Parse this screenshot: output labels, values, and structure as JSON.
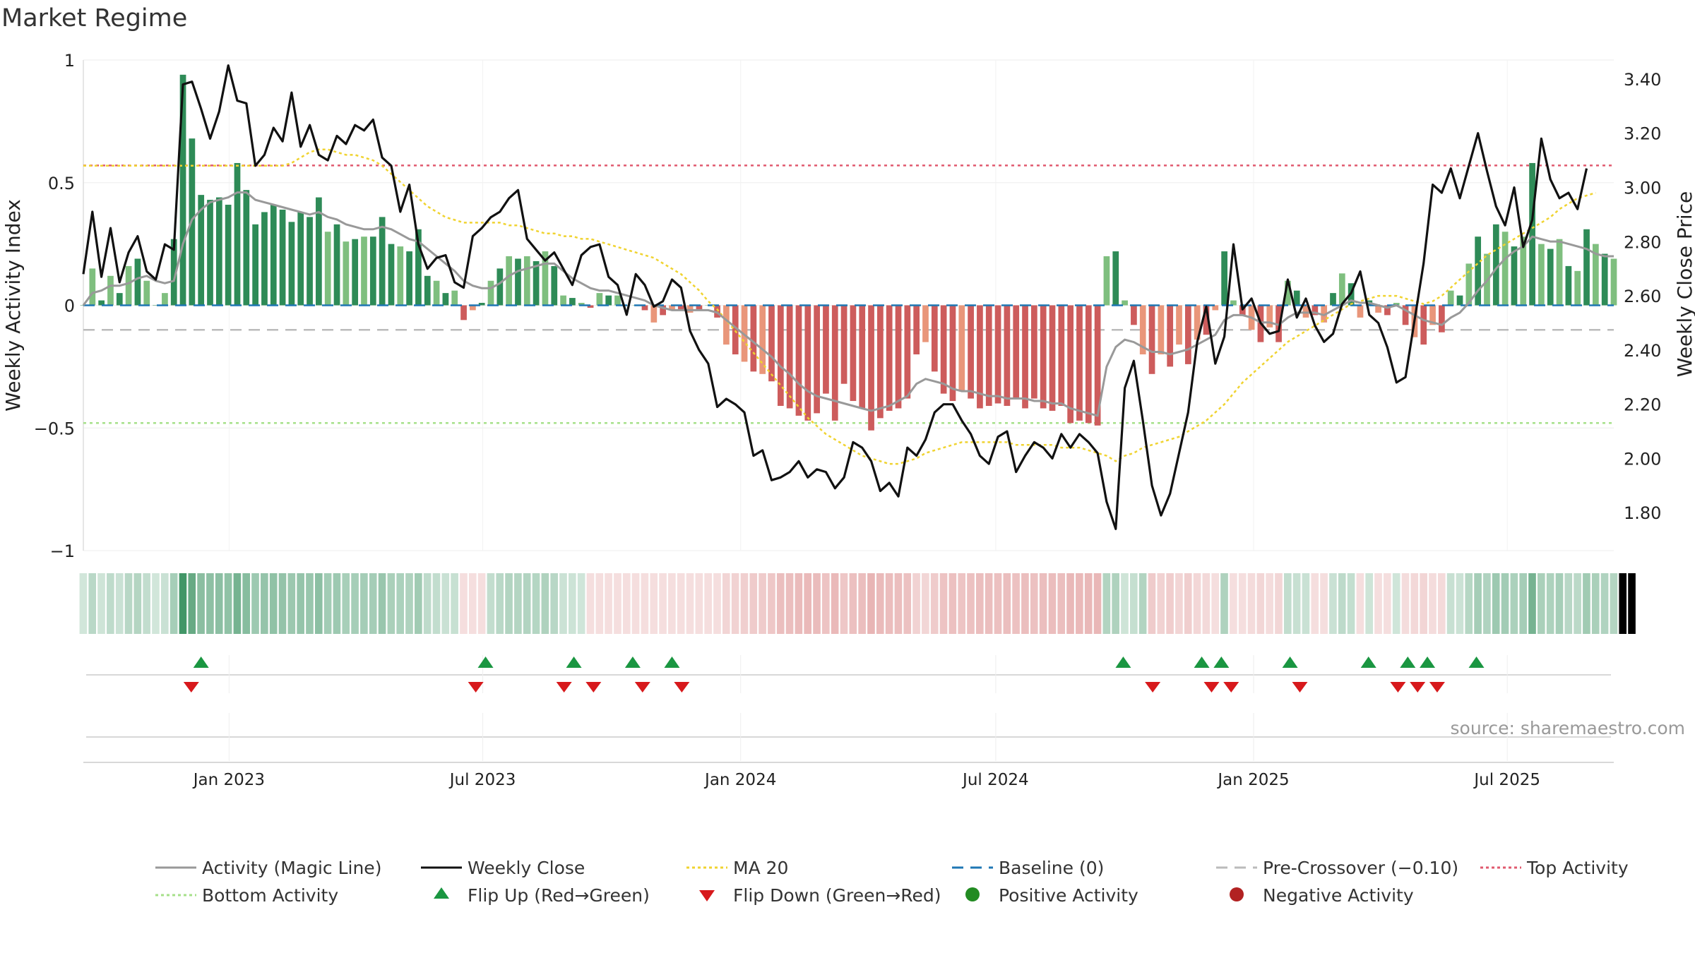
{
  "title": "Market Regime",
  "source_note": "source: sharemaestro.com",
  "colors": {
    "up_strong": "#2e8b57",
    "up_light": "#7fbf7f",
    "down_strong": "#cd5c5c",
    "down_light": "#e9967a",
    "close_line": "#111111",
    "magic_line": "#999999",
    "ma20": "#f0d330",
    "baseline": "#1f77b4",
    "pre_crossover": "#bbbbbb",
    "top_activity": "#e05a6f",
    "bottom_activity": "#a6e08a",
    "flip_up": "#1a9641",
    "flip_down": "#d7191c"
  },
  "chart_data": {
    "type": "bar",
    "title": "Market Regime",
    "ylabel": "Weekly Activity Index",
    "y2label": "Weekly Close Price",
    "ylim": [
      -1,
      1
    ],
    "y2lim": [
      1.66,
      3.47
    ],
    "yticks": [
      "1",
      "0.5",
      "0",
      "−0.5",
      "−1"
    ],
    "y2ticks": [
      "3.40",
      "3.20",
      "3.00",
      "2.80",
      "2.60",
      "2.40",
      "2.20",
      "2.00",
      "1.80"
    ],
    "x_start": "2022-09-19",
    "x_end": "2025-09-15",
    "xticks": [
      "Jan 2023",
      "Jul 2023",
      "Jan 2024",
      "Jul 2024",
      "Jan 2025",
      "Jul 2025"
    ],
    "top_activity": 0.57,
    "bottom_activity": -0.48,
    "pre_crossover": -0.1,
    "baseline": 0,
    "legend_position": "bottom",
    "grid": true,
    "series": [
      {
        "name": "Activity (Magic Line)",
        "type": "line",
        "axis": "left"
      },
      {
        "name": "Weekly Close",
        "type": "line",
        "axis": "right"
      },
      {
        "name": "MA 20",
        "type": "line",
        "axis": "right"
      },
      {
        "name": "Baseline (0)",
        "type": "hline"
      },
      {
        "name": "Pre-Crossover (−0.10)",
        "type": "hline"
      },
      {
        "name": "Top Activity",
        "type": "hline"
      },
      {
        "name": "Bottom Activity",
        "type": "hline"
      },
      {
        "name": "Flip Up (Red→Green)",
        "type": "marker"
      },
      {
        "name": "Flip Down (Green→Red)",
        "type": "marker"
      },
      {
        "name": "Positive Activity",
        "type": "marker"
      },
      {
        "name": "Negative Activity",
        "type": "marker"
      }
    ],
    "activity_index": [
      0.0,
      0.15,
      0.02,
      0.12,
      0.05,
      0.16,
      0.19,
      0.1,
      0.0,
      0.05,
      0.27,
      0.94,
      0.68,
      0.45,
      0.43,
      0.44,
      0.41,
      0.58,
      0.47,
      0.33,
      0.38,
      0.41,
      0.39,
      0.34,
      0.38,
      0.36,
      0.44,
      0.3,
      0.33,
      0.26,
      0.27,
      0.28,
      0.28,
      0.36,
      0.25,
      0.24,
      0.22,
      0.31,
      0.12,
      0.1,
      0.05,
      0.06,
      -0.06,
      -0.02,
      0.01,
      0.1,
      0.15,
      0.2,
      0.19,
      0.2,
      0.18,
      0.22,
      0.16,
      0.04,
      0.03,
      0.01,
      -0.01,
      0.05,
      0.04,
      0.04,
      0.0,
      0.0,
      -0.02,
      -0.07,
      -0.04,
      -0.02,
      -0.02,
      -0.03,
      -0.02,
      0.0,
      -0.05,
      -0.16,
      -0.2,
      -0.23,
      -0.27,
      -0.28,
      -0.31,
      -0.41,
      -0.42,
      -0.45,
      -0.47,
      -0.44,
      -0.36,
      -0.47,
      -0.32,
      -0.39,
      -0.42,
      -0.51,
      -0.46,
      -0.43,
      -0.42,
      -0.38,
      -0.2,
      -0.15,
      -0.27,
      -0.36,
      -0.39,
      -0.35,
      -0.38,
      -0.42,
      -0.41,
      -0.4,
      -0.41,
      -0.38,
      -0.42,
      -0.38,
      -0.42,
      -0.43,
      -0.41,
      -0.48,
      -0.47,
      -0.48,
      -0.49,
      0.2,
      0.22,
      0.02,
      -0.08,
      -0.2,
      -0.28,
      -0.2,
      -0.25,
      -0.16,
      -0.24,
      -0.14,
      -0.12,
      -0.02,
      0.22,
      0.02,
      -0.04,
      -0.1,
      -0.15,
      -0.09,
      -0.15,
      0.1,
      0.06,
      -0.05,
      -0.04,
      -0.07,
      0.05,
      0.13,
      0.09,
      -0.05,
      0.02,
      -0.03,
      -0.04,
      0.01,
      -0.08,
      -0.13,
      -0.16,
      -0.08,
      -0.11,
      0.06,
      0.04,
      0.17,
      0.28,
      0.21,
      0.33,
      0.3,
      0.24,
      0.28,
      0.58,
      0.25,
      0.23,
      0.27,
      0.16,
      0.14,
      0.31,
      0.25,
      0.21,
      0.19
    ],
    "activity_magic_line": [
      0.0,
      0.05,
      0.06,
      0.08,
      0.08,
      0.09,
      0.11,
      0.12,
      0.1,
      0.09,
      0.1,
      0.25,
      0.35,
      0.39,
      0.42,
      0.43,
      0.44,
      0.46,
      0.46,
      0.43,
      0.42,
      0.41,
      0.4,
      0.39,
      0.38,
      0.37,
      0.38,
      0.36,
      0.35,
      0.33,
      0.32,
      0.31,
      0.31,
      0.32,
      0.31,
      0.29,
      0.27,
      0.26,
      0.23,
      0.2,
      0.17,
      0.14,
      0.1,
      0.08,
      0.07,
      0.07,
      0.09,
      0.12,
      0.14,
      0.15,
      0.16,
      0.17,
      0.17,
      0.14,
      0.11,
      0.09,
      0.07,
      0.06,
      0.06,
      0.05,
      0.04,
      0.03,
      0.02,
      0.0,
      -0.01,
      -0.02,
      -0.02,
      -0.02,
      -0.02,
      -0.02,
      -0.03,
      -0.06,
      -0.09,
      -0.12,
      -0.15,
      -0.18,
      -0.21,
      -0.25,
      -0.28,
      -0.32,
      -0.35,
      -0.37,
      -0.38,
      -0.39,
      -0.4,
      -0.41,
      -0.42,
      -0.43,
      -0.42,
      -0.41,
      -0.39,
      -0.37,
      -0.32,
      -0.3,
      -0.31,
      -0.32,
      -0.34,
      -0.35,
      -0.35,
      -0.36,
      -0.37,
      -0.37,
      -0.38,
      -0.38,
      -0.38,
      -0.39,
      -0.39,
      -0.4,
      -0.4,
      -0.42,
      -0.43,
      -0.44,
      -0.45,
      -0.25,
      -0.17,
      -0.14,
      -0.15,
      -0.17,
      -0.19,
      -0.19,
      -0.2,
      -0.19,
      -0.18,
      -0.16,
      -0.14,
      -0.12,
      -0.06,
      -0.04,
      -0.04,
      -0.05,
      -0.07,
      -0.07,
      -0.08,
      -0.05,
      -0.03,
      -0.03,
      -0.03,
      -0.04,
      -0.02,
      0.0,
      0.02,
      0.01,
      0.01,
      0.0,
      -0.01,
      0.0,
      -0.02,
      -0.04,
      -0.06,
      -0.07,
      -0.08,
      -0.05,
      -0.03,
      0.01,
      0.06,
      0.1,
      0.15,
      0.19,
      0.22,
      0.24,
      0.28,
      0.27,
      0.26,
      0.26,
      0.25,
      0.24,
      0.23,
      0.21,
      0.2,
      0.2
    ],
    "weekly_close": [
      2.68,
      2.91,
      2.67,
      2.85,
      2.65,
      2.76,
      2.82,
      2.69,
      2.66,
      2.79,
      2.77,
      3.38,
      3.39,
      3.29,
      3.18,
      3.28,
      3.45,
      3.32,
      3.31,
      3.08,
      3.12,
      3.22,
      3.17,
      3.35,
      3.15,
      3.23,
      3.12,
      3.1,
      3.19,
      3.16,
      3.23,
      3.21,
      3.25,
      3.11,
      3.08,
      2.91,
      3.01,
      2.79,
      2.7,
      2.74,
      2.75,
      2.65,
      2.63,
      2.82,
      2.85,
      2.89,
      2.91,
      2.96,
      2.99,
      2.81,
      2.77,
      2.73,
      2.76,
      2.7,
      2.64,
      2.75,
      2.78,
      2.79,
      2.67,
      2.64,
      2.53,
      2.68,
      2.64,
      2.56,
      2.58,
      2.66,
      2.63,
      2.47,
      2.4,
      2.35,
      2.19,
      2.22,
      2.2,
      2.17,
      2.01,
      2.03,
      1.92,
      1.93,
      1.95,
      1.99,
      1.93,
      1.96,
      1.95,
      1.89,
      1.93,
      2.06,
      2.04,
      1.99,
      1.88,
      1.91,
      1.86,
      2.04,
      2.01,
      2.07,
      2.17,
      2.2,
      2.2,
      2.14,
      2.09,
      2.01,
      1.98,
      2.08,
      2.1,
      1.95,
      2.01,
      2.06,
      2.04,
      2.0,
      2.09,
      2.04,
      2.09,
      2.06,
      2.02,
      1.84,
      1.74,
      2.26,
      2.36,
      2.14,
      1.9,
      1.79,
      1.87,
      2.02,
      2.17,
      2.43,
      2.56,
      2.35,
      2.45,
      2.79,
      2.55,
      2.59,
      2.5,
      2.46,
      2.47,
      2.66,
      2.52,
      2.59,
      2.49,
      2.43,
      2.46,
      2.57,
      2.61,
      2.69,
      2.53,
      2.5,
      2.41,
      2.28,
      2.3,
      2.51,
      2.72,
      3.01,
      2.98,
      3.07,
      2.96,
      3.08,
      3.2,
      3.06,
      2.93,
      2.86,
      3.0,
      2.78,
      2.88,
      3.18,
      3.03,
      2.96,
      2.98,
      2.92,
      3.07
    ],
    "ma20": [
      3.08,
      3.08,
      3.08,
      3.08,
      3.08,
      3.08,
      3.08,
      3.08,
      3.08,
      3.08,
      3.08,
      3.08,
      3.08,
      3.08,
      3.08,
      3.08,
      3.08,
      3.08,
      3.08,
      3.08,
      3.08,
      3.08,
      3.08,
      3.09,
      3.11,
      3.13,
      3.14,
      3.14,
      3.13,
      3.12,
      3.12,
      3.11,
      3.1,
      3.08,
      3.05,
      3.02,
      2.99,
      2.96,
      2.93,
      2.91,
      2.89,
      2.88,
      2.87,
      2.87,
      2.87,
      2.87,
      2.87,
      2.86,
      2.86,
      2.85,
      2.84,
      2.83,
      2.83,
      2.82,
      2.82,
      2.81,
      2.81,
      2.8,
      2.79,
      2.78,
      2.77,
      2.76,
      2.75,
      2.74,
      2.72,
      2.7,
      2.68,
      2.65,
      2.62,
      2.58,
      2.55,
      2.51,
      2.47,
      2.43,
      2.39,
      2.35,
      2.31,
      2.27,
      2.23,
      2.19,
      2.15,
      2.12,
      2.09,
      2.07,
      2.05,
      2.03,
      2.01,
      2.0,
      1.99,
      1.98,
      1.98,
      1.99,
      2.0,
      2.02,
      2.03,
      2.04,
      2.05,
      2.06,
      2.06,
      2.06,
      2.06,
      2.06,
      2.06,
      2.05,
      2.05,
      2.05,
      2.05,
      2.05,
      2.04,
      2.04,
      2.04,
      2.03,
      2.02,
      2.01,
      1.99,
      2.01,
      2.02,
      2.04,
      2.05,
      2.06,
      2.07,
      2.08,
      2.1,
      2.12,
      2.14,
      2.17,
      2.2,
      2.24,
      2.28,
      2.31,
      2.34,
      2.37,
      2.4,
      2.43,
      2.45,
      2.47,
      2.49,
      2.51,
      2.53,
      2.55,
      2.57,
      2.58,
      2.59,
      2.6,
      2.6,
      2.6,
      2.59,
      2.58,
      2.57,
      2.58,
      2.6,
      2.63,
      2.66,
      2.69,
      2.72,
      2.75,
      2.77,
      2.79,
      2.81,
      2.83,
      2.85,
      2.87,
      2.89,
      2.92,
      2.94,
      2.96,
      2.97,
      2.98
    ],
    "regime_band": [
      "+",
      "+",
      "+",
      "+",
      "+",
      "+",
      "+",
      "+",
      "+",
      "+",
      "+",
      "+",
      "+",
      "+",
      "+",
      "+",
      "+",
      "+",
      "+",
      "+",
      "+",
      "+",
      "+",
      "+",
      "+",
      "+",
      "+",
      "+",
      "+",
      "+",
      "+",
      "+",
      "+",
      "+",
      "+",
      "+",
      "+",
      "+",
      "+",
      "+",
      "+",
      "+",
      "-",
      "-",
      "-",
      "+",
      "+",
      "+",
      "+",
      "+",
      "+",
      "+",
      "+",
      "+",
      "+",
      "+",
      "-",
      "-",
      "-",
      "-",
      "-",
      "-",
      "-",
      "-",
      "-",
      "-",
      "-",
      "-",
      "-",
      "-",
      "-",
      "-",
      "-",
      "-",
      "-",
      "-",
      "-",
      "-",
      "-",
      "-",
      "-",
      "-",
      "-",
      "-",
      "-",
      "-",
      "-",
      "-",
      "-",
      "-",
      "-",
      "-",
      "-",
      "-",
      "-",
      "-",
      "-",
      "-",
      "-",
      "-",
      "-",
      "-",
      "-",
      "-",
      "-",
      "-",
      "-",
      "-",
      "-",
      "-",
      "-",
      "-",
      "-",
      "+",
      "+",
      "+",
      "+",
      "+",
      "-",
      "-",
      "-",
      "-",
      "-",
      "-",
      "-",
      "-",
      "+",
      "-",
      "-",
      "-",
      "-",
      "-",
      "-",
      "+",
      "+",
      "+",
      "-",
      "-",
      "+",
      "+",
      "+",
      "-",
      "+",
      "-",
      "-",
      "+",
      "-",
      "-",
      "-",
      "-",
      "-",
      "+",
      "+",
      "+",
      "+",
      "+",
      "+",
      "+",
      "+",
      "+",
      "+",
      "+",
      "+",
      "+",
      "+",
      "+",
      "+",
      "+",
      "+",
      "+",
      "+",
      "+"
    ],
    "flip_up_dates": [
      "2022-12-12",
      "2023-07-03",
      "2023-09-04",
      "2023-10-16",
      "2023-11-13",
      "2024-09-30",
      "2024-11-25",
      "2024-12-09",
      "2025-01-27",
      "2025-03-24",
      "2025-04-21",
      "2025-05-05",
      "2025-06-09"
    ],
    "flip_down_dates": [
      "2022-12-05",
      "2023-06-26",
      "2023-08-28",
      "2023-09-18",
      "2023-10-23",
      "2023-11-20",
      "2024-10-21",
      "2024-12-02",
      "2024-12-16",
      "2025-02-03",
      "2025-04-14",
      "2025-04-28",
      "2025-05-12"
    ]
  },
  "legend": {
    "row1": [
      "Activity (Magic Line)",
      "Weekly Close",
      "MA 20",
      "Baseline (0)",
      "Pre-Crossover (−0.10)",
      "Top Activity"
    ],
    "row2": [
      "Bottom Activity",
      "Flip Up (Red→Green)",
      "Flip Down (Green→Red)",
      "Positive Activity",
      "Negative Activity"
    ]
  }
}
